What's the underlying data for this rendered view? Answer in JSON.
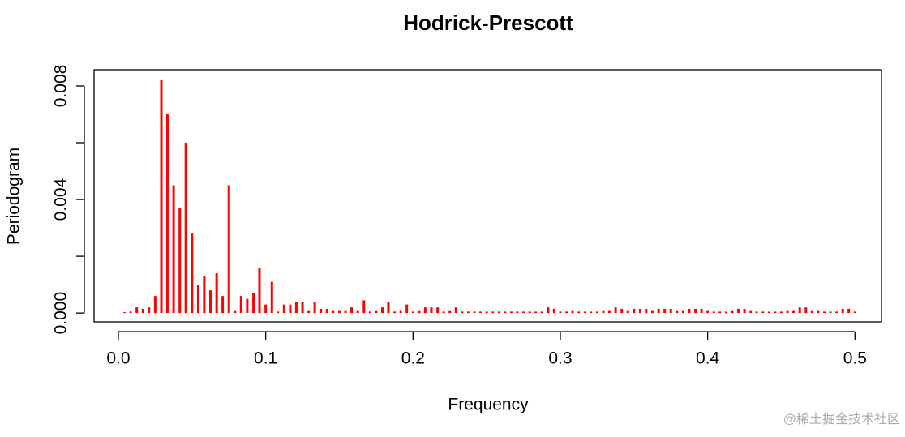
{
  "chart_data": {
    "type": "spike",
    "title": "Hodrick-Prescott",
    "xlabel": "Frequency",
    "ylabel": "Periodogram",
    "color": "#ff0000",
    "x": [
      0.0042,
      0.0083,
      0.0125,
      0.0167,
      0.0208,
      0.025,
      0.0292,
      0.0333,
      0.0375,
      0.0417,
      0.0458,
      0.05,
      0.0542,
      0.0583,
      0.0625,
      0.0667,
      0.0708,
      0.075,
      0.0792,
      0.0833,
      0.0875,
      0.0917,
      0.0958,
      0.1,
      0.1042,
      0.1083,
      0.1125,
      0.1167,
      0.1208,
      0.125,
      0.1292,
      0.1333,
      0.1375,
      0.1417,
      0.1458,
      0.15,
      0.1542,
      0.1583,
      0.1625,
      0.1667,
      0.1708,
      0.175,
      0.1792,
      0.1833,
      0.1875,
      0.1917,
      0.1958,
      0.2,
      0.2042,
      0.2083,
      0.2125,
      0.2167,
      0.2208,
      0.225,
      0.2292,
      0.2333,
      0.2375,
      0.2417,
      0.2458,
      0.25,
      0.2542,
      0.2583,
      0.2625,
      0.2667,
      0.2708,
      0.275,
      0.2792,
      0.2833,
      0.2875,
      0.2917,
      0.2958,
      0.3,
      0.3042,
      0.3083,
      0.3125,
      0.3167,
      0.3208,
      0.325,
      0.3292,
      0.3333,
      0.3375,
      0.3417,
      0.3458,
      0.35,
      0.3542,
      0.3583,
      0.3625,
      0.3667,
      0.3708,
      0.375,
      0.3792,
      0.3833,
      0.3875,
      0.3917,
      0.3958,
      0.4,
      0.4042,
      0.4083,
      0.4125,
      0.4167,
      0.4208,
      0.425,
      0.4292,
      0.4333,
      0.4375,
      0.4417,
      0.4458,
      0.45,
      0.4542,
      0.4583,
      0.4625,
      0.4667,
      0.4708,
      0.475,
      0.4792,
      0.4833,
      0.4875,
      0.4917,
      0.4958,
      0.5
    ],
    "values": [
      3e-05,
      5e-05,
      0.0002,
      0.00015,
      0.0002,
      0.0006,
      0.0082,
      0.007,
      0.0045,
      0.0037,
      0.006,
      0.0028,
      0.001,
      0.0013,
      0.0008,
      0.0014,
      0.0006,
      0.0045,
      0.0001,
      0.0006,
      0.0005,
      0.0007,
      0.0016,
      0.0003,
      0.0011,
      5e-05,
      0.0003,
      0.0003,
      0.0004,
      0.0004,
      0.0001,
      0.0004,
      0.00015,
      0.00015,
      0.0001,
      0.0001,
      0.0001,
      0.0002,
      0.0001,
      0.00045,
      5e-05,
      0.0001,
      0.0002,
      0.0004,
      5e-05,
      0.0001,
      0.0003,
      5e-05,
      0.0001,
      0.0002,
      0.0002,
      0.0002,
      5e-05,
      0.0001,
      0.0002,
      5e-05,
      5e-05,
      5e-05,
      5e-05,
      5e-05,
      5e-05,
      5e-05,
      5e-05,
      5e-05,
      5e-05,
      5e-05,
      5e-05,
      5e-05,
      5e-05,
      0.0002,
      0.00015,
      5e-05,
      5e-05,
      0.0001,
      5e-05,
      5e-05,
      5e-05,
      5e-05,
      0.0001,
      0.0001,
      0.0002,
      0.00015,
      0.0001,
      0.00015,
      0.00015,
      0.00015,
      0.0001,
      0.00015,
      0.00015,
      0.00015,
      0.0001,
      0.0001,
      0.00015,
      0.00015,
      0.00015,
      0.0001,
      5e-05,
      5e-05,
      5e-05,
      0.0001,
      0.00015,
      0.00015,
      0.0001,
      5e-05,
      5e-05,
      5e-05,
      5e-05,
      5e-05,
      0.0001,
      0.0001,
      0.0002,
      0.0002,
      0.0001,
      0.0001,
      5e-05,
      5e-05,
      5e-05,
      0.00015,
      0.00015,
      5e-05
    ],
    "xlim": [
      -0.0165,
      0.518
    ],
    "ylim": [
      -0.00031,
      0.00857
    ],
    "xticks": [
      {
        "value": 0,
        "label": "0.0"
      },
      0.1,
      0.2,
      0.3,
      0.4,
      0.5
    ],
    "yticks": [
      {
        "value": 0,
        "label": "0.000"
      },
      {
        "value": 0.002,
        "label": null
      },
      {
        "value": 0.004,
        "label": "0.004"
      },
      {
        "value": 0.006,
        "label": null
      },
      {
        "value": 0.008,
        "label": "0.008"
      }
    ],
    "watermark": "@稀土掘金技术社区"
  }
}
